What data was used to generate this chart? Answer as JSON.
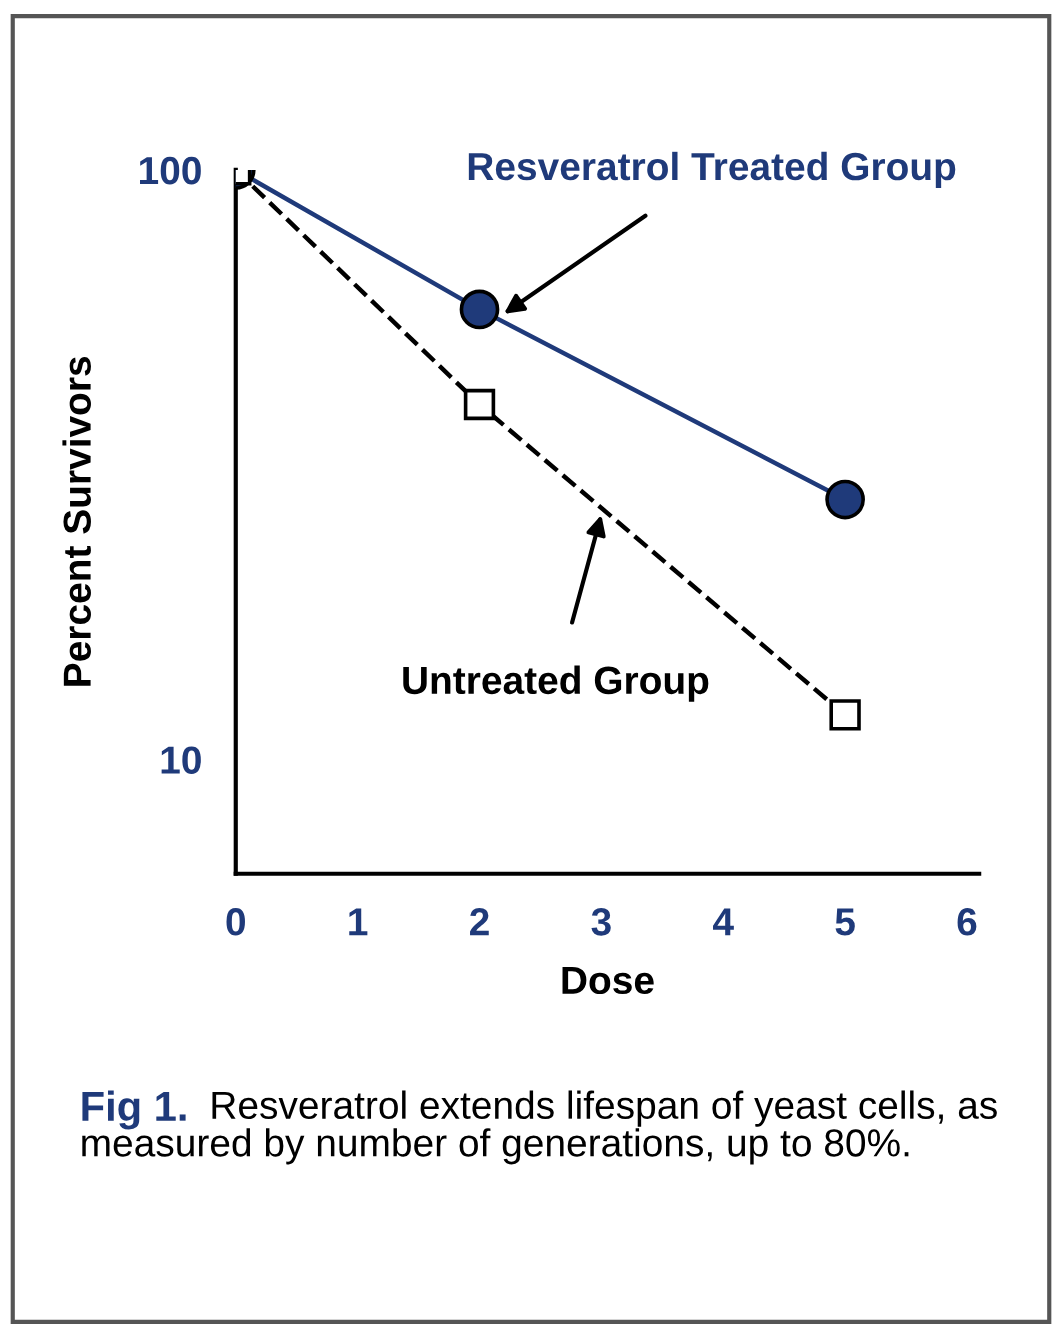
{
  "chart_data": {
    "type": "line",
    "xlabel": "Dose",
    "ylabel": "Percent Survivors",
    "log": "y",
    "xlim": [
      0,
      6.1
    ],
    "xticks": [
      0,
      1,
      2,
      3,
      4,
      5,
      6
    ],
    "ylim": [
      6.4,
      100
    ],
    "yticks": [
      10,
      100
    ],
    "grid": false,
    "legend": false,
    "series": [
      {
        "x": [
          0,
          2,
          5
        ],
        "values": [
          100,
          58,
          27.6
        ],
        "color": "#1f3a7a",
        "marker": "circle",
        "line_style": "solid"
      },
      {
        "x": [
          0,
          2,
          5
        ],
        "values": [
          100,
          40,
          11.9
        ],
        "color": "#000000",
        "marker": "square",
        "line_style": "dashed"
      }
    ],
    "annotations": [
      {
        "text": "Resveratrol Treated Group",
        "x": 2.2,
        "y": 57
      },
      {
        "text": "Untreated Group",
        "x": 3.0,
        "y": 26
      },
      "Fig 1.",
      "Resveratrol extends lifespan of yeast cells, as measured by number of generations, up to 80%."
    ]
  }
}
